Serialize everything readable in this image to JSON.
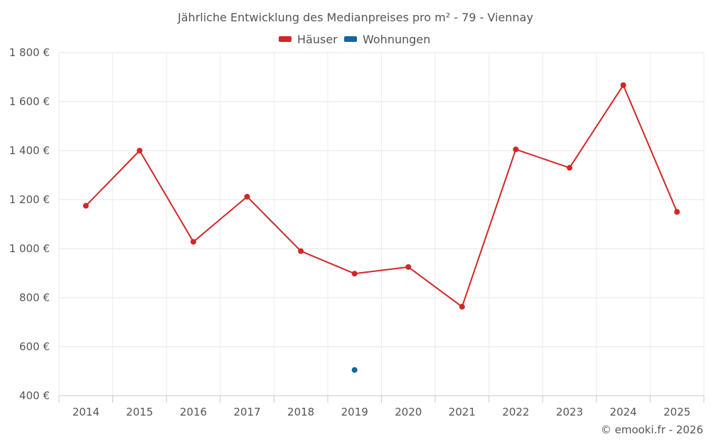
{
  "chart_data": {
    "type": "line",
    "title": "Jährliche Entwicklung des Medianpreises pro m² - 79 - Viennay",
    "categories": [
      "2014",
      "2015",
      "2016",
      "2017",
      "2018",
      "2019",
      "2020",
      "2021",
      "2022",
      "2023",
      "2024",
      "2025"
    ],
    "series": [
      {
        "name": "Häuser",
        "color": "#d32626",
        "values": [
          1175,
          1400,
          1028,
          1212,
          990,
          898,
          925,
          763,
          1405,
          1330,
          1667,
          1150
        ]
      },
      {
        "name": "Wohnungen",
        "color": "#1565a0",
        "values": [
          null,
          null,
          null,
          null,
          null,
          505,
          null,
          null,
          null,
          null,
          null,
          null
        ]
      }
    ],
    "ylim": [
      400,
      1800
    ],
    "yticks": [
      400,
      600,
      800,
      1000,
      1200,
      1400,
      1600,
      1800
    ],
    "ytick_labels": [
      "400 €",
      "600 €",
      "800 €",
      "1 000 €",
      "1 200 €",
      "1 400 €",
      "1 600 €",
      "1 800 €"
    ],
    "grid": true,
    "legend": "top-center",
    "credit": "© emooki.fr - 2026"
  }
}
